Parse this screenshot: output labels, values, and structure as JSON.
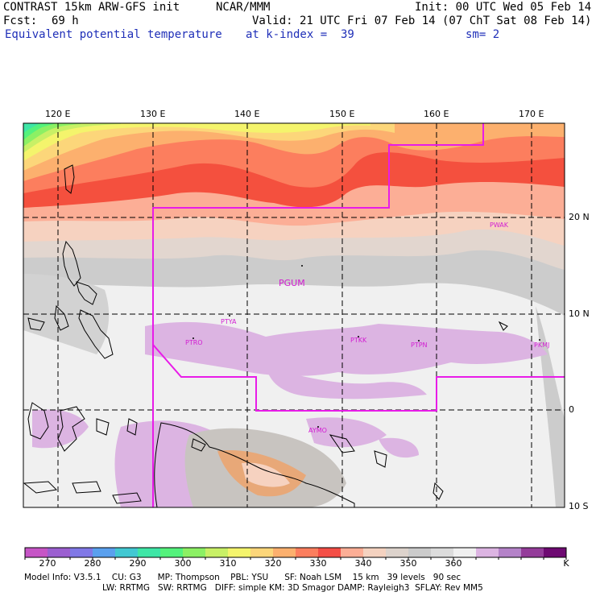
{
  "header": {
    "model_title": "CONTRAST 15km ARW-GFS init",
    "org": "NCAR/MMM",
    "init": "Init: 00 UTC Wed 05 Feb 14",
    "fcst_label": "Fcst:",
    "fcst_value": "69 h",
    "valid": "Valid: 21 UTC Fri 07 Feb 14 (07 ChT Sat 08 Feb 14)",
    "field": "Equivalent potential temperature",
    "kindex": "at k-index =  39",
    "smoothing": "sm= 2"
  },
  "map": {
    "lon_labels": [
      "120 E",
      "130 E",
      "140 E",
      "150 E",
      "160 E",
      "170 E"
    ],
    "lat_labels": [
      "20 N",
      "10 N",
      "0",
      "10 S"
    ],
    "stations": [
      {
        "id": "PWAK"
      },
      {
        "id": "PGUM"
      },
      {
        "id": "PTYA"
      },
      {
        "id": "PTRO"
      },
      {
        "id": "PTKK"
      },
      {
        "id": "PTPN"
      },
      {
        "id": "PKMJ"
      },
      {
        "id": "AYMO"
      }
    ],
    "domain_color": "#e81ce8"
  },
  "colorbar": {
    "labels": [
      "270",
      "280",
      "290",
      "300",
      "310",
      "320",
      "330",
      "340",
      "350",
      "360"
    ],
    "unit": "K",
    "colors": [
      "#c655c6",
      "#9b5fd0",
      "#8078e6",
      "#5aa0ee",
      "#42c8d2",
      "#3ee6a6",
      "#54f27c",
      "#8cf064",
      "#c8f066",
      "#f4f46c",
      "#fcd67a",
      "#fcb06e",
      "#fc7e5e",
      "#f44e46",
      "#fcae96",
      "#f4d2c0",
      "#ddd3cc",
      "#cbcbcb",
      "#dcdcdc",
      "#f0f0f0",
      "#dcb4e2",
      "#b482c8",
      "#943c9a",
      "#6e0a72"
    ]
  },
  "footer": {
    "line1": "Model Info: V3.5.1    CU: G3      MP: Thompson    PBL: YSU      SF: Noah LSM    15 km   39 levels   90 sec",
    "line2": "LW: RRTMG   SW: RRTMG   DIFF: simple KM: 3D Smagor DAMP: Rayleigh3  SFLAY: Rev MM5"
  }
}
